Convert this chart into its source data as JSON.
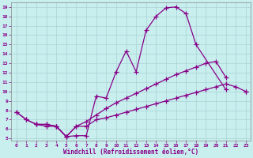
{
  "xlabel": "Windchill (Refroidissement éolien,°C)",
  "xlim": [
    -0.5,
    23.5
  ],
  "ylim": [
    4.8,
    19.5
  ],
  "xticks": [
    0,
    1,
    2,
    3,
    4,
    5,
    6,
    7,
    8,
    9,
    10,
    11,
    12,
    13,
    14,
    15,
    16,
    17,
    18,
    19,
    20,
    21,
    22,
    23
  ],
  "yticks": [
    5,
    6,
    7,
    8,
    9,
    10,
    11,
    12,
    13,
    14,
    15,
    16,
    17,
    18,
    19
  ],
  "background_color": "#c8eeee",
  "grid_color": "#aad4d4",
  "line_color": "#880088",
  "line_width": 0.9,
  "marker": "+",
  "marker_size": 4,
  "curve1_x": [
    0,
    1,
    2,
    3,
    4,
    5,
    6,
    7,
    8,
    9,
    10,
    11,
    12,
    13,
    14,
    15,
    16,
    17,
    18,
    21
  ],
  "curve1_y": [
    7.8,
    7.0,
    6.5,
    6.3,
    6.3,
    5.2,
    5.3,
    5.3,
    9.5,
    9.3,
    12.1,
    14.3,
    12.1,
    16.5,
    18.0,
    18.9,
    19.0,
    18.3,
    15.0,
    10.2
  ],
  "curve2_x": [
    0,
    1,
    2,
    3,
    4,
    5,
    6,
    7,
    8,
    9,
    10,
    11,
    12,
    13,
    14,
    15,
    16,
    17,
    18,
    19,
    20,
    21,
    22,
    23
  ],
  "curve2_y": [
    7.8,
    7.0,
    6.5,
    6.5,
    6.3,
    5.2,
    6.3,
    6.8,
    7.5,
    8.2,
    8.8,
    9.3,
    9.8,
    10.3,
    10.8,
    11.3,
    11.8,
    12.2,
    12.6,
    13.0,
    13.2,
    11.5,
    null,
    10.0
  ],
  "curve3_x": [
    2,
    3,
    4,
    5,
    6,
    7,
    8,
    9,
    10,
    11,
    12,
    13,
    14,
    15,
    16,
    17,
    18,
    19,
    20,
    21,
    22,
    23
  ],
  "curve3_y": [
    6.5,
    6.5,
    6.3,
    5.2,
    6.3,
    6.3,
    7.0,
    7.2,
    7.5,
    7.8,
    8.1,
    8.4,
    8.7,
    9.0,
    9.3,
    9.6,
    9.9,
    10.2,
    10.5,
    10.8,
    10.5,
    10.0
  ]
}
